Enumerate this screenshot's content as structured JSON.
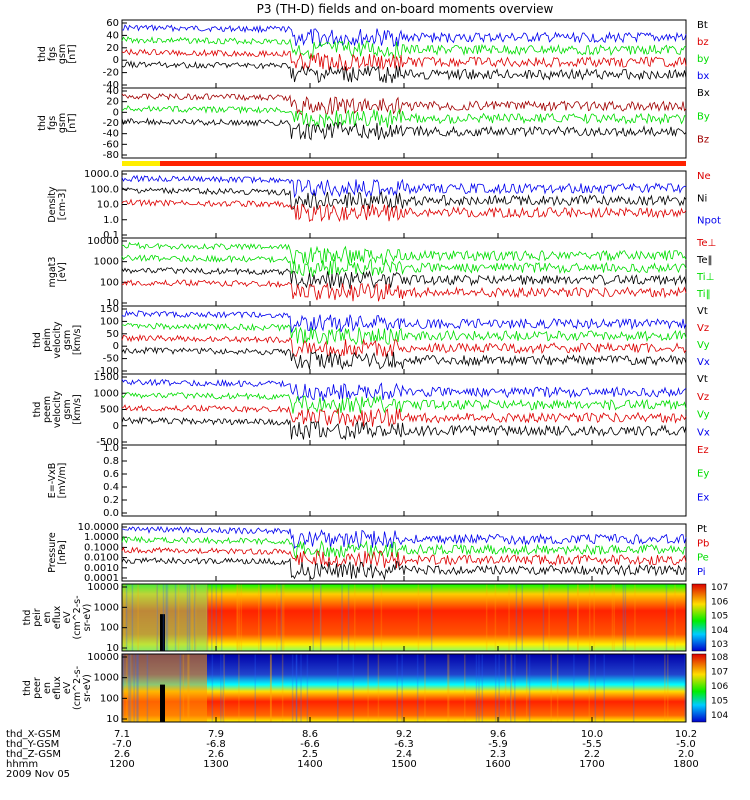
{
  "title": "P3 (TH-D) fields and on-board moments overview",
  "colors": {
    "black": "#000000",
    "red": "#dd0000",
    "darkred": "#a00000",
    "green": "#00dd00",
    "blue": "#0000ee"
  },
  "chart_data": {
    "type": "line",
    "x_ticks": [
      "1200",
      "1300",
      "1400",
      "1500",
      "1600",
      "1700",
      "1800"
    ],
    "ephemeris": [
      {
        "label": "thd_X-GSM",
        "values": [
          "7.1",
          "7.9",
          "8.6",
          "9.2",
          "9.6",
          "10.0",
          "10.2"
        ]
      },
      {
        "label": "thd_Y-GSM",
        "values": [
          "-7.0",
          "-6.8",
          "-6.6",
          "-6.3",
          "-5.9",
          "-5.5",
          "-5.0"
        ]
      },
      {
        "label": "thd_Z-GSM",
        "values": [
          "2.6",
          "2.6",
          "2.5",
          "2.4",
          "2.3",
          "2.2",
          "2.0"
        ]
      },
      {
        "label": "hhmm",
        "values": [
          "1200",
          "1300",
          "1400",
          "1500",
          "1600",
          "1700",
          "1800"
        ]
      }
    ],
    "date": "2009 Nov 05",
    "panels": [
      {
        "id": "bfgs",
        "ylabel": [
          "thd",
          "fgs",
          "gsm",
          "[nT]"
        ],
        "ticks": [
          "60",
          "40",
          "20",
          "0",
          "-20",
          "-40"
        ],
        "ylim": [
          -40,
          60
        ],
        "legend": [
          {
            "name": "Bt",
            "color": "black"
          },
          {
            "name": "bz",
            "color": "red"
          },
          {
            "name": "by",
            "color": "green"
          },
          {
            "name": "bx",
            "color": "blue"
          }
        ]
      },
      {
        "id": "bfgs2",
        "ylabel": [
          "thd",
          "fgs",
          "gsm",
          "[nT]"
        ],
        "ticks": [
          "40",
          "20",
          "0",
          "-20",
          "-40",
          "-60",
          "-80"
        ],
        "ylim": [
          -80,
          40
        ],
        "legend": [
          {
            "name": "Bx",
            "color": "black"
          },
          {
            "name": "By",
            "color": "green"
          },
          {
            "name": "Bz",
            "color": "darkred"
          }
        ]
      },
      {
        "id": "density",
        "ylabel": [
          "Density",
          "[cm-3]"
        ],
        "ticks": [
          "1000.0",
          "100.0",
          "10.0",
          "1.0",
          "0.1"
        ],
        "log": true,
        "legend": [
          {
            "name": "Ne",
            "color": "red"
          },
          {
            "name": "Ni",
            "color": "black"
          },
          {
            "name": "Npot",
            "color": "blue"
          }
        ]
      },
      {
        "id": "temp",
        "ylabel": [
          "mgat3",
          "[eV]"
        ],
        "ticks": [
          "10000",
          "1000",
          "100",
          "10"
        ],
        "log": true,
        "legend": [
          {
            "name": "Te⊥",
            "color": "red"
          },
          {
            "name": "Te‖",
            "color": "black"
          },
          {
            "name": "Ti⊥",
            "color": "green"
          },
          {
            "name": "Ti‖",
            "color": "green"
          }
        ]
      },
      {
        "id": "vi",
        "ylabel": [
          "thd",
          "peim",
          "velocity",
          "gsm",
          "[km/s]"
        ],
        "ticks": [
          "150",
          "100",
          "50",
          "0",
          "-50",
          "-100"
        ],
        "ylim": [
          -100,
          150
        ],
        "legend": [
          {
            "name": "Vt",
            "color": "black"
          },
          {
            "name": "Vz",
            "color": "red"
          },
          {
            "name": "Vy",
            "color": "green"
          },
          {
            "name": "Vx",
            "color": "blue"
          }
        ]
      },
      {
        "id": "ve",
        "ylabel": [
          "thd",
          "peem",
          "velocity",
          "gsm",
          "[km/s]"
        ],
        "ticks": [
          "1500",
          "1000",
          "500",
          "0",
          "-500"
        ],
        "ylim": [
          -500,
          1500
        ],
        "legend": [
          {
            "name": "Vt",
            "color": "black"
          },
          {
            "name": "Vz",
            "color": "red"
          },
          {
            "name": "Vy",
            "color": "green"
          },
          {
            "name": "Vx",
            "color": "blue"
          }
        ]
      },
      {
        "id": "efield",
        "ylabel": [
          "E=-VxB",
          "[mV/m]"
        ],
        "ticks": [
          "1.0",
          "0.8",
          "0.6",
          "0.4",
          "0.2",
          "0.0"
        ],
        "ylim": [
          0,
          1
        ],
        "legend": [
          {
            "name": "Ez",
            "color": "red"
          },
          {
            "name": "Ey",
            "color": "green"
          },
          {
            "name": "Ex",
            "color": "blue"
          }
        ]
      },
      {
        "id": "pressure",
        "ylabel": [
          "Pressure",
          "[nPa]"
        ],
        "ticks": [
          "10.0000",
          "1.0000",
          "0.1000",
          "0.0100",
          "0.0010",
          "0.0001"
        ],
        "log": true,
        "legend": [
          {
            "name": "Pt",
            "color": "black"
          },
          {
            "name": "Pb",
            "color": "red"
          },
          {
            "name": "Pe",
            "color": "green"
          },
          {
            "name": "Pi",
            "color": "blue"
          }
        ]
      },
      {
        "id": "ion_spec",
        "ylabel": [
          "thd",
          "peir",
          "en",
          "eflux",
          "eV",
          "(cm^2-s-",
          "sr-eV)"
        ],
        "ticks": [
          "10000",
          "1000",
          "100",
          "10"
        ],
        "colorbar": [
          "10^7",
          "10^6",
          "10^5",
          "10^4",
          "10^3"
        ]
      },
      {
        "id": "ele_spec",
        "ylabel": [
          "thd",
          "peer",
          "en",
          "eflux",
          "eV",
          "(cm^2-s-",
          "sr-eV)"
        ],
        "ticks": [
          "10000",
          "1000",
          "100",
          "10"
        ],
        "colorbar": [
          "10^8",
          "10^7",
          "10^6",
          "10^5",
          "10^4"
        ]
      }
    ]
  }
}
